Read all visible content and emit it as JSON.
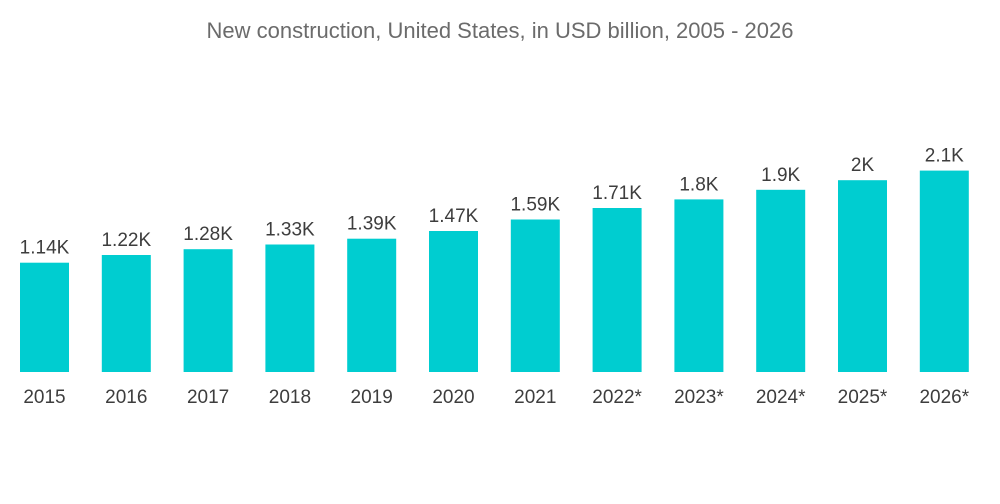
{
  "chart_data": {
    "type": "bar",
    "title": "New construction, United States, in USD billion, 2005 - 2026",
    "xlabel": "",
    "ylabel": "",
    "ylim": [
      0,
      2400
    ],
    "grid": false,
    "legend": "none",
    "bar_color": "#00cdd0",
    "categories": [
      "2015",
      "2016",
      "2017",
      "2018",
      "2019",
      "2020",
      "2021",
      "2022*",
      "2023*",
      "2024*",
      "2025*",
      "2026*"
    ],
    "values": [
      1140,
      1220,
      1280,
      1330,
      1390,
      1470,
      1590,
      1710,
      1800,
      1900,
      2000,
      2100
    ],
    "value_labels": [
      "1.14K",
      "1.22K",
      "1.28K",
      "1.33K",
      "1.39K",
      "1.47K",
      "1.59K",
      "1.71K",
      "1.8K",
      "1.9K",
      "2K",
      "2.1K"
    ]
  }
}
